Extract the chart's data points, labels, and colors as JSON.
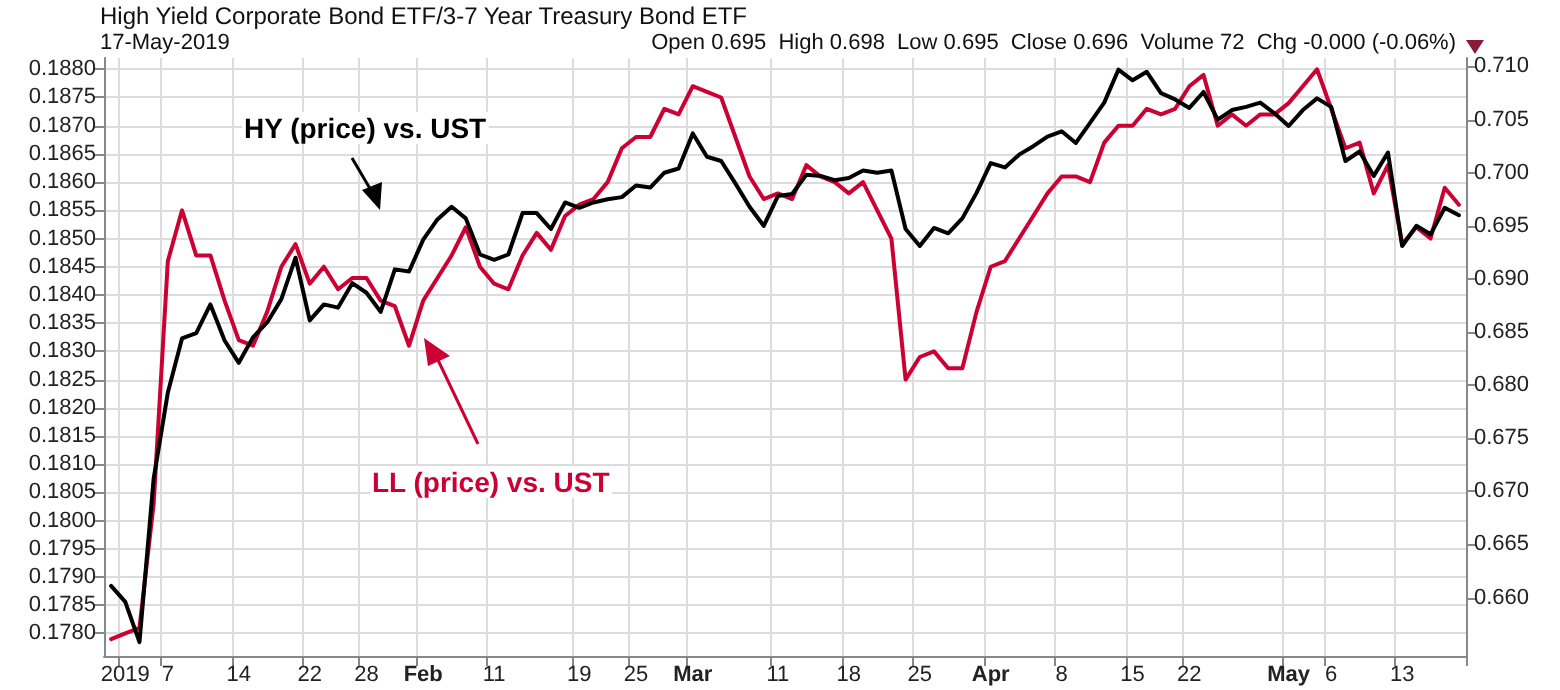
{
  "chart_data": {
    "type": "line",
    "title": "High Yield Corporate Bond ETF/3-7 Year Treasury Bond ETF",
    "subtitle": "17-May-2019",
    "annotations": [
      "Open 0.695  High 0.698  Low 0.695  Close 0.696  Volume 72  Chg -0.000 (-0.06%)",
      "HY (price) vs. UST",
      "LL (price) vs. UST"
    ],
    "categories": [
      null,
      "2019",
      null,
      null,
      "7",
      null,
      null,
      null,
      null,
      "14",
      null,
      null,
      null,
      null,
      "22",
      null,
      null,
      null,
      "28",
      null,
      null,
      null,
      "Feb",
      null,
      null,
      null,
      null,
      "11",
      null,
      null,
      null,
      null,
      null,
      "19",
      null,
      null,
      null,
      "25",
      null,
      null,
      null,
      "Mar",
      null,
      null,
      null,
      null,
      null,
      "11",
      null,
      null,
      null,
      null,
      "18",
      null,
      null,
      null,
      null,
      "25",
      null,
      null,
      null,
      null,
      "Apr",
      null,
      null,
      null,
      null,
      "8",
      null,
      null,
      null,
      null,
      "15",
      null,
      null,
      null,
      "22",
      null,
      null,
      null,
      null,
      null,
      null,
      "May",
      null,
      null,
      "6",
      null,
      null,
      null,
      null,
      "13",
      null,
      null,
      null,
      null
    ],
    "series": [
      {
        "color": "#cc0033",
        "values": [
          0.1779,
          0.178,
          0.1781,
          0.1803,
          0.1846,
          0.1855,
          0.1847,
          0.1847,
          0.1839,
          0.1832,
          0.1831,
          0.1837,
          0.1845,
          0.1849,
          0.1842,
          0.1845,
          0.1841,
          0.1843,
          0.1843,
          0.1839,
          0.1838,
          0.1831,
          0.1839,
          0.1843,
          0.1847,
          0.1852,
          0.1845,
          0.1842,
          0.1841,
          0.1847,
          0.1851,
          0.1848,
          0.1854,
          0.1856,
          0.1857,
          0.186,
          0.1866,
          0.1868,
          0.1868,
          0.1873,
          0.1872,
          0.1877,
          0.1876,
          0.1875,
          0.1868,
          0.1861,
          0.1857,
          0.1858,
          0.1857,
          0.1863,
          0.1861,
          0.186,
          0.1858,
          0.186,
          0.1855,
          0.185,
          0.1825,
          0.1829,
          0.183,
          0.1827,
          0.1827,
          0.1837,
          0.1845,
          0.1846,
          0.185,
          0.1854,
          0.1858,
          0.1861,
          0.1861,
          0.186,
          0.1867,
          0.187,
          0.187,
          0.1873,
          0.1872,
          0.1873,
          0.1877,
          0.1879,
          0.187,
          0.1872,
          0.187,
          0.1872,
          0.1872,
          0.1874,
          0.1877,
          0.188,
          0.1873,
          0.1866,
          0.1867,
          0.1858,
          0.1863,
          0.1849,
          0.1852,
          0.185,
          0.1859,
          0.1856
        ]
      },
      {
        "color": "#000000",
        "axis": "y2",
        "values": [
          0.6611,
          0.6596,
          0.6558,
          0.6712,
          0.6793,
          0.6844,
          0.6849,
          0.6876,
          0.6842,
          0.6821,
          0.6845,
          0.6859,
          0.6881,
          0.692,
          0.6861,
          0.6876,
          0.6873,
          0.6896,
          0.6887,
          0.6869,
          0.6909,
          0.6907,
          0.6937,
          0.6956,
          0.6968,
          0.6957,
          0.6923,
          0.6918,
          0.6923,
          0.6962,
          0.6962,
          0.6947,
          0.6972,
          0.6967,
          0.6972,
          0.6975,
          0.6977,
          0.6988,
          0.6986,
          0.7,
          0.7004,
          0.7037,
          0.7015,
          0.7011,
          0.699,
          0.6968,
          0.695,
          0.6978,
          0.698,
          0.6998,
          0.6997,
          0.6993,
          0.6995,
          0.7002,
          0.7,
          0.7002,
          0.6947,
          0.6931,
          0.6948,
          0.6943,
          0.6957,
          0.6981,
          0.7009,
          0.7005,
          0.7017,
          0.7025,
          0.7034,
          0.7039,
          0.7028,
          0.7047,
          0.7066,
          0.7097,
          0.7087,
          0.7095,
          0.7075,
          0.7069,
          0.7061,
          0.7076,
          0.705,
          0.7059,
          0.7062,
          0.7066,
          0.7056,
          0.7044,
          0.7059,
          0.707,
          0.7062,
          0.7011,
          0.702,
          0.6997,
          0.7019,
          0.6931,
          0.695,
          0.6942,
          0.6967,
          0.696
        ]
      }
    ],
    "ylim": [
      0.1776,
      0.1882
    ],
    "yticks": [
      {
        "value": 0.178,
        "label": "0.1780"
      },
      {
        "value": 0.1785,
        "label": "0.1785"
      },
      {
        "value": 0.179,
        "label": "0.1790"
      },
      {
        "value": 0.1795,
        "label": "0.1795"
      },
      {
        "value": 0.18,
        "label": "0.1800"
      },
      {
        "value": 0.1805,
        "label": "0.1805"
      },
      {
        "value": 0.181,
        "label": "0.1810"
      },
      {
        "value": 0.1815,
        "label": "0.1815"
      },
      {
        "value": 0.182,
        "label": "0.1820"
      },
      {
        "value": 0.1825,
        "label": "0.1825"
      },
      {
        "value": 0.183,
        "label": "0.1830"
      },
      {
        "value": 0.1835,
        "label": "0.1835"
      },
      {
        "value": 0.184,
        "label": "0.1840"
      },
      {
        "value": 0.1845,
        "label": "0.1845"
      },
      {
        "value": 0.185,
        "label": "0.1850"
      },
      {
        "value": 0.1855,
        "label": "0.1855"
      },
      {
        "value": 0.186,
        "label": "0.1860"
      },
      {
        "value": 0.1865,
        "label": "0.1865"
      },
      {
        "value": 0.187,
        "label": "0.1870"
      },
      {
        "value": 0.1875,
        "label": "0.1875"
      },
      {
        "value": 0.188,
        "label": "0.1880"
      }
    ],
    "y2lim": [
      0.6545,
      0.7108
    ],
    "y2ticks": [
      {
        "value": 0.66,
        "label": "0.660"
      },
      {
        "value": 0.665,
        "label": "0.665"
      },
      {
        "value": 0.67,
        "label": "0.670"
      },
      {
        "value": 0.675,
        "label": "0.675"
      },
      {
        "value": 0.68,
        "label": "0.680"
      },
      {
        "value": 0.685,
        "label": "0.685"
      },
      {
        "value": 0.69,
        "label": "0.690"
      },
      {
        "value": 0.695,
        "label": "0.695"
      },
      {
        "value": 0.7,
        "label": "0.700"
      },
      {
        "value": 0.705,
        "label": "0.705"
      },
      {
        "value": 0.71,
        "label": "0.710"
      }
    ],
    "grid": true,
    "marker": "none",
    "line_style": "solid"
  }
}
